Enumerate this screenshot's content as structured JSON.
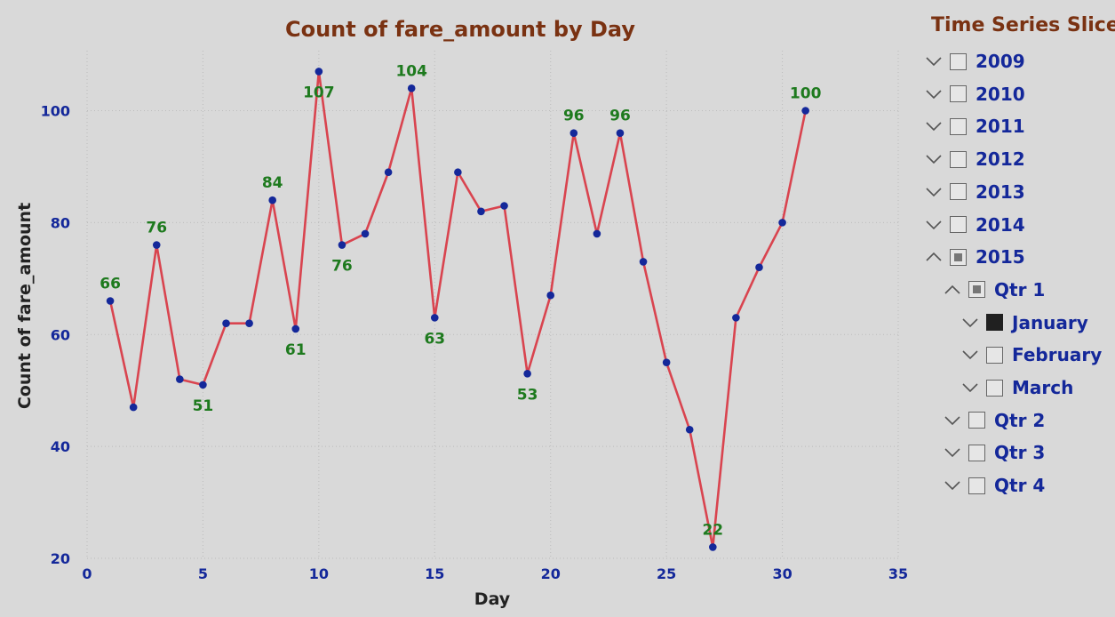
{
  "chart_data": {
    "type": "line",
    "title": "Count of fare_amount by Day",
    "xlabel": "Day",
    "ylabel": "Count of fare_amount",
    "xlim": [
      0,
      35
    ],
    "ylim": [
      20,
      110
    ],
    "x_ticks": [
      "0",
      "5",
      "10",
      "15",
      "20",
      "25",
      "30",
      "35"
    ],
    "y_ticks": [
      "20",
      "40",
      "60",
      "80",
      "100"
    ],
    "grid": "dotted",
    "series": [
      {
        "x": [
          1,
          2,
          3,
          4,
          5,
          6,
          7,
          8,
          9,
          10,
          11,
          12,
          13,
          14,
          15,
          16,
          17,
          18,
          19,
          20,
          21,
          22,
          23,
          24,
          25,
          26,
          27,
          28,
          29,
          30,
          31
        ],
        "values": [
          66,
          47,
          76,
          52,
          51,
          62,
          62,
          84,
          61,
          107,
          76,
          78,
          89,
          104,
          63,
          89,
          82,
          83,
          53,
          67,
          96,
          78,
          96,
          73,
          55,
          43,
          22,
          63,
          72,
          80,
          100
        ],
        "line_color": "#d9444f",
        "marker_color": "#14289a"
      }
    ],
    "data_labels": [
      {
        "x": 1,
        "value": 66,
        "text": "66",
        "pos": "above"
      },
      {
        "x": 3,
        "value": 76,
        "text": "76",
        "pos": "above"
      },
      {
        "x": 5,
        "value": 51,
        "text": "51",
        "pos": "below"
      },
      {
        "x": 8,
        "value": 84,
        "text": "84",
        "pos": "above"
      },
      {
        "x": 9,
        "value": 61,
        "text": "61",
        "pos": "below"
      },
      {
        "x": 10,
        "value": 107,
        "text": "107",
        "pos": "below"
      },
      {
        "x": 11,
        "value": 76,
        "text": "76",
        "pos": "below"
      },
      {
        "x": 14,
        "value": 104,
        "text": "104",
        "pos": "above"
      },
      {
        "x": 15,
        "value": 63,
        "text": "63",
        "pos": "below"
      },
      {
        "x": 19,
        "value": 53,
        "text": "53",
        "pos": "below"
      },
      {
        "x": 21,
        "value": 96,
        "text": "96",
        "pos": "above"
      },
      {
        "x": 23,
        "value": 96,
        "text": "96",
        "pos": "above"
      },
      {
        "x": 27,
        "value": 22,
        "text": "22",
        "pos": "above"
      },
      {
        "x": 31,
        "value": 100,
        "text": "100",
        "pos": "above"
      }
    ]
  },
  "slicer": {
    "title": "Time Series Slicer",
    "items": [
      {
        "label": "2009",
        "level": 0,
        "expanded": false,
        "state": "unchecked"
      },
      {
        "label": "2010",
        "level": 0,
        "expanded": false,
        "state": "unchecked"
      },
      {
        "label": "2011",
        "level": 0,
        "expanded": false,
        "state": "unchecked"
      },
      {
        "label": "2012",
        "level": 0,
        "expanded": false,
        "state": "unchecked"
      },
      {
        "label": "2013",
        "level": 0,
        "expanded": false,
        "state": "unchecked"
      },
      {
        "label": "2014",
        "level": 0,
        "expanded": false,
        "state": "unchecked"
      },
      {
        "label": "2015",
        "level": 0,
        "expanded": true,
        "state": "partial"
      },
      {
        "label": "Qtr 1",
        "level": 1,
        "expanded": true,
        "state": "partial"
      },
      {
        "label": "January",
        "level": 2,
        "expanded": false,
        "state": "checked"
      },
      {
        "label": "February",
        "level": 2,
        "expanded": false,
        "state": "unchecked"
      },
      {
        "label": "March",
        "level": 2,
        "expanded": false,
        "state": "unchecked"
      },
      {
        "label": "Qtr 2",
        "level": 1,
        "expanded": false,
        "state": "unchecked"
      },
      {
        "label": "Qtr 3",
        "level": 1,
        "expanded": false,
        "state": "unchecked"
      },
      {
        "label": "Qtr 4",
        "level": 1,
        "expanded": false,
        "state": "unchecked"
      }
    ]
  },
  "colors": {
    "title": "#7a3212",
    "tick_text": "#14289a",
    "data_label": "#1e7a1e",
    "line": "#d9444f",
    "marker": "#14289a",
    "background": "#d9d9d9"
  }
}
